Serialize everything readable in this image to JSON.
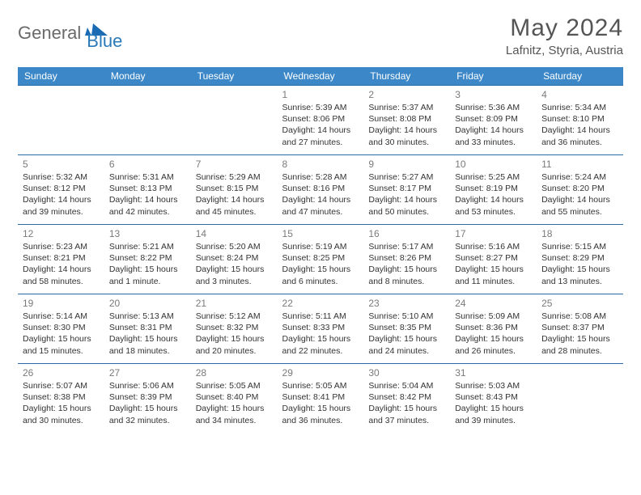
{
  "logo": {
    "text1": "General",
    "text2": "Blue",
    "shape_color": "#1a6bb3"
  },
  "title": "May 2024",
  "location": "Lafnitz, Styria, Austria",
  "colors": {
    "header_bg": "#3b87c8",
    "header_text": "#ffffff",
    "border": "#2a6da8",
    "daynum": "#7a7a7a",
    "body_text": "#333333"
  },
  "day_headers": [
    "Sunday",
    "Monday",
    "Tuesday",
    "Wednesday",
    "Thursday",
    "Friday",
    "Saturday"
  ],
  "weeks": [
    [
      null,
      null,
      null,
      {
        "n": "1",
        "sr": "5:39 AM",
        "ss": "8:06 PM",
        "dl": "14 hours and 27 minutes."
      },
      {
        "n": "2",
        "sr": "5:37 AM",
        "ss": "8:08 PM",
        "dl": "14 hours and 30 minutes."
      },
      {
        "n": "3",
        "sr": "5:36 AM",
        "ss": "8:09 PM",
        "dl": "14 hours and 33 minutes."
      },
      {
        "n": "4",
        "sr": "5:34 AM",
        "ss": "8:10 PM",
        "dl": "14 hours and 36 minutes."
      }
    ],
    [
      {
        "n": "5",
        "sr": "5:32 AM",
        "ss": "8:12 PM",
        "dl": "14 hours and 39 minutes."
      },
      {
        "n": "6",
        "sr": "5:31 AM",
        "ss": "8:13 PM",
        "dl": "14 hours and 42 minutes."
      },
      {
        "n": "7",
        "sr": "5:29 AM",
        "ss": "8:15 PM",
        "dl": "14 hours and 45 minutes."
      },
      {
        "n": "8",
        "sr": "5:28 AM",
        "ss": "8:16 PM",
        "dl": "14 hours and 47 minutes."
      },
      {
        "n": "9",
        "sr": "5:27 AM",
        "ss": "8:17 PM",
        "dl": "14 hours and 50 minutes."
      },
      {
        "n": "10",
        "sr": "5:25 AM",
        "ss": "8:19 PM",
        "dl": "14 hours and 53 minutes."
      },
      {
        "n": "11",
        "sr": "5:24 AM",
        "ss": "8:20 PM",
        "dl": "14 hours and 55 minutes."
      }
    ],
    [
      {
        "n": "12",
        "sr": "5:23 AM",
        "ss": "8:21 PM",
        "dl": "14 hours and 58 minutes."
      },
      {
        "n": "13",
        "sr": "5:21 AM",
        "ss": "8:22 PM",
        "dl": "15 hours and 1 minute."
      },
      {
        "n": "14",
        "sr": "5:20 AM",
        "ss": "8:24 PM",
        "dl": "15 hours and 3 minutes."
      },
      {
        "n": "15",
        "sr": "5:19 AM",
        "ss": "8:25 PM",
        "dl": "15 hours and 6 minutes."
      },
      {
        "n": "16",
        "sr": "5:17 AM",
        "ss": "8:26 PM",
        "dl": "15 hours and 8 minutes."
      },
      {
        "n": "17",
        "sr": "5:16 AM",
        "ss": "8:27 PM",
        "dl": "15 hours and 11 minutes."
      },
      {
        "n": "18",
        "sr": "5:15 AM",
        "ss": "8:29 PM",
        "dl": "15 hours and 13 minutes."
      }
    ],
    [
      {
        "n": "19",
        "sr": "5:14 AM",
        "ss": "8:30 PM",
        "dl": "15 hours and 15 minutes."
      },
      {
        "n": "20",
        "sr": "5:13 AM",
        "ss": "8:31 PM",
        "dl": "15 hours and 18 minutes."
      },
      {
        "n": "21",
        "sr": "5:12 AM",
        "ss": "8:32 PM",
        "dl": "15 hours and 20 minutes."
      },
      {
        "n": "22",
        "sr": "5:11 AM",
        "ss": "8:33 PM",
        "dl": "15 hours and 22 minutes."
      },
      {
        "n": "23",
        "sr": "5:10 AM",
        "ss": "8:35 PM",
        "dl": "15 hours and 24 minutes."
      },
      {
        "n": "24",
        "sr": "5:09 AM",
        "ss": "8:36 PM",
        "dl": "15 hours and 26 minutes."
      },
      {
        "n": "25",
        "sr": "5:08 AM",
        "ss": "8:37 PM",
        "dl": "15 hours and 28 minutes."
      }
    ],
    [
      {
        "n": "26",
        "sr": "5:07 AM",
        "ss": "8:38 PM",
        "dl": "15 hours and 30 minutes."
      },
      {
        "n": "27",
        "sr": "5:06 AM",
        "ss": "8:39 PM",
        "dl": "15 hours and 32 minutes."
      },
      {
        "n": "28",
        "sr": "5:05 AM",
        "ss": "8:40 PM",
        "dl": "15 hours and 34 minutes."
      },
      {
        "n": "29",
        "sr": "5:05 AM",
        "ss": "8:41 PM",
        "dl": "15 hours and 36 minutes."
      },
      {
        "n": "30",
        "sr": "5:04 AM",
        "ss": "8:42 PM",
        "dl": "15 hours and 37 minutes."
      },
      {
        "n": "31",
        "sr": "5:03 AM",
        "ss": "8:43 PM",
        "dl": "15 hours and 39 minutes."
      },
      null
    ]
  ],
  "labels": {
    "sunrise": "Sunrise: ",
    "sunset": "Sunset: ",
    "daylight": "Daylight: "
  }
}
